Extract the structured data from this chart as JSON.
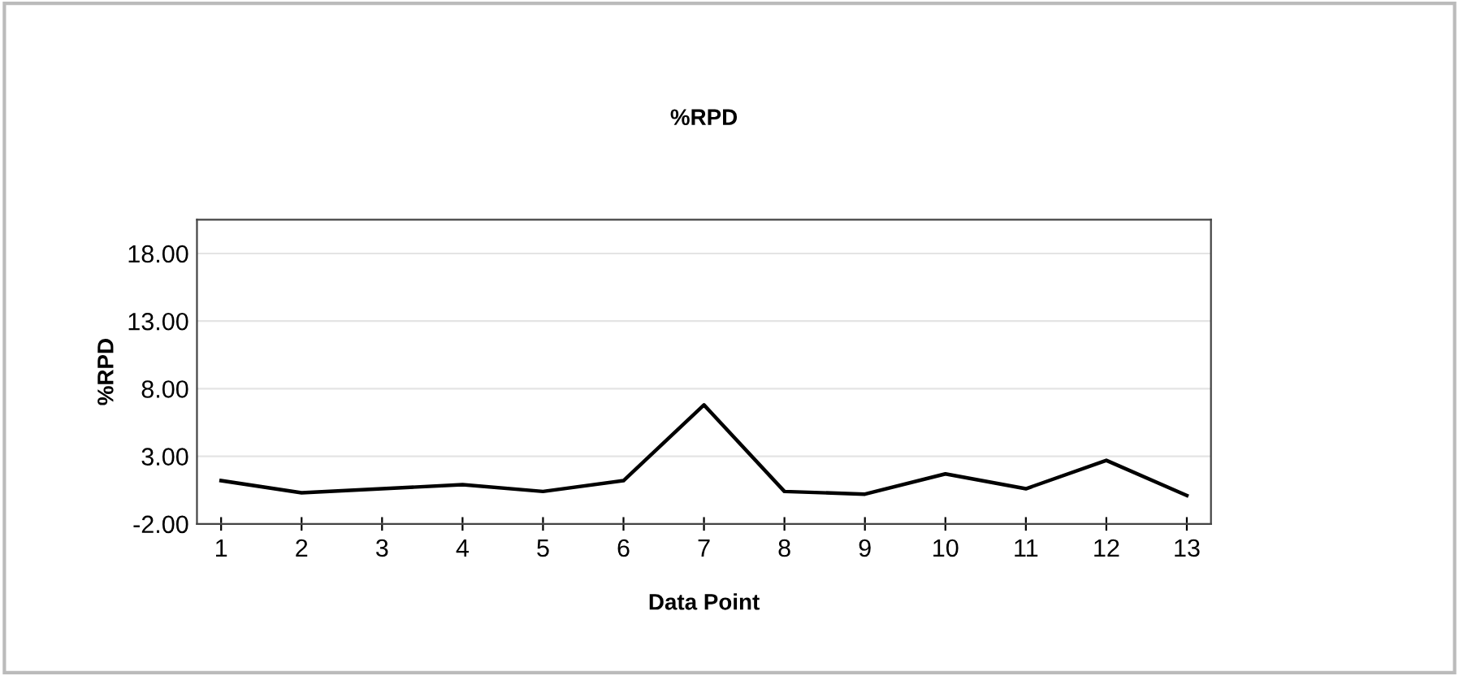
{
  "chart_data": {
    "type": "line",
    "title": "%RPD",
    "xlabel": "Data Point",
    "ylabel": "%RPD",
    "categories": [
      "1",
      "2",
      "3",
      "4",
      "5",
      "6",
      "7",
      "8",
      "9",
      "10",
      "11",
      "12",
      "13"
    ],
    "series": [
      {
        "color": "#000000",
        "values": [
          1.2,
          0.3,
          0.6,
          0.9,
          0.4,
          1.2,
          6.8,
          0.4,
          0.2,
          1.7,
          0.6,
          2.7,
          0.1
        ]
      }
    ],
    "ylim": [
      -2,
      20.5
    ],
    "yticks": [
      {
        "value": -2,
        "label": "-2.00"
      },
      {
        "value": 3,
        "label": "3.00"
      },
      {
        "value": 8,
        "label": "8.00"
      },
      {
        "value": 13,
        "label": "13.00"
      },
      {
        "value": 18,
        "label": "18.00"
      }
    ],
    "grid": "y",
    "marker": "none",
    "line_style": "solid"
  }
}
